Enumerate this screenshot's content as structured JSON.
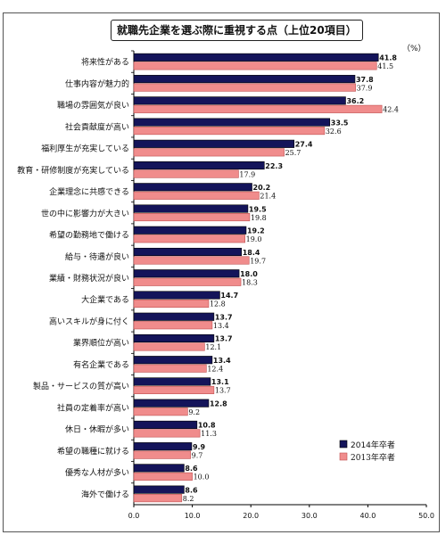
{
  "chart_data": {
    "type": "bar",
    "orientation": "horizontal",
    "title": "就職先企業を選ぶ際に重視する点（上位20項目）",
    "unit": "（%）",
    "categories": [
      "将来性がある",
      "仕事内容が魅力的",
      "職場の雰囲気が良い",
      "社会貢献度が高い",
      "福利厚生が充実している",
      "教育・研修制度が充実している",
      "企業理念に共感できる",
      "世の中に影響力が大きい",
      "希望の勤務地で働ける",
      "給与・待遇が良い",
      "業績・財務状況が良い",
      "大企業である",
      "高いスキルが身に付く",
      "業界順位が高い",
      "有名企業である",
      "製品・サービスの質が高い",
      "社員の定着率が高い",
      "休日・休暇が多い",
      "希望の職種に就ける",
      "優秀な人材が多い",
      "海外で働ける"
    ],
    "series": [
      {
        "name": "2014年卒者",
        "color": "#14145a",
        "values": [
          41.8,
          37.8,
          36.2,
          33.5,
          27.4,
          22.3,
          20.2,
          19.5,
          19.2,
          18.4,
          18.0,
          14.7,
          13.7,
          13.7,
          13.4,
          13.1,
          12.8,
          10.8,
          9.9,
          8.6,
          8.6
        ]
      },
      {
        "name": "2013年卒者",
        "color": "#f08c8c",
        "values": [
          41.5,
          37.9,
          42.4,
          32.6,
          25.7,
          17.9,
          21.4,
          19.8,
          19.0,
          19.7,
          18.3,
          12.8,
          13.4,
          12.1,
          12.4,
          13.7,
          9.2,
          11.3,
          9.7,
          10.0,
          8.2
        ]
      }
    ],
    "xlim": [
      0,
      50
    ],
    "xticks": [
      "0.0",
      "10.0",
      "20.0",
      "30.0",
      "40.0",
      "50.0"
    ],
    "legend": "bottom-right",
    "grid": false
  }
}
